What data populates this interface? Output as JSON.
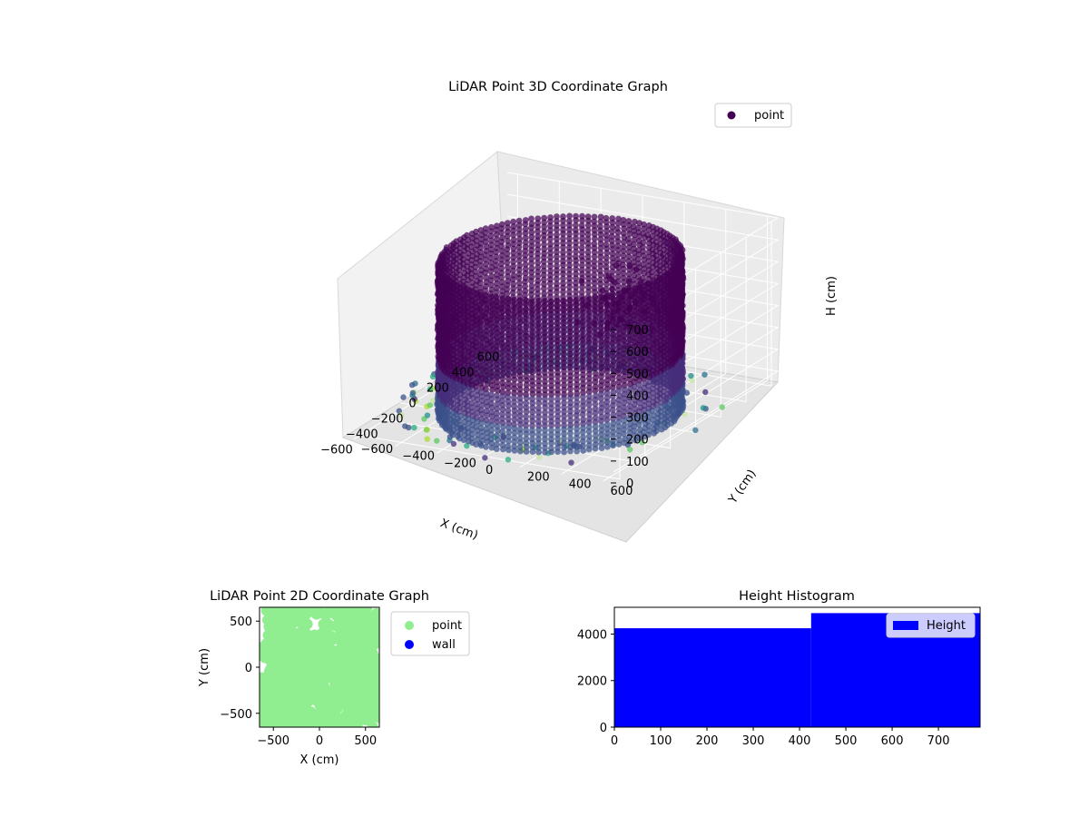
{
  "charts": {
    "c3d": {
      "title": "LiDAR Point 3D Coordinate Graph",
      "xlabel": "X (cm)",
      "ylabel": "Y (cm)",
      "zlabel": "H (cm)",
      "legend": "point",
      "x_ticks": [
        "−600",
        "−400",
        "−200",
        "0",
        "200",
        "400",
        "600"
      ],
      "y_ticks": [
        "−600",
        "−400",
        "−200",
        "0",
        "200",
        "400",
        "600"
      ],
      "z_ticks": [
        "0",
        "100",
        "200",
        "300",
        "400",
        "500",
        "600",
        "700"
      ]
    },
    "c2d": {
      "title": "LiDAR Point 2D Coordinate Graph",
      "xlabel": "X (cm)",
      "ylabel": "Y (cm)",
      "legend": [
        "point",
        "wall"
      ],
      "x_ticks": [
        "−500",
        "0",
        "500"
      ],
      "y_ticks": [
        "500",
        "0",
        "−500"
      ]
    },
    "hist": {
      "title": "Height Histogram",
      "legend": "Height",
      "x_ticks": [
        "0",
        "100",
        "200",
        "300",
        "400",
        "500",
        "600",
        "700"
      ],
      "y_ticks": [
        "0",
        "2000",
        "4000"
      ]
    }
  },
  "chart_data": [
    {
      "type": "scatter",
      "title": "LiDAR Point 3D Coordinate Graph",
      "xlabel": "X (cm)",
      "ylabel": "Y (cm)",
      "zlabel": "H (cm)",
      "xlim": [
        -650,
        650
      ],
      "ylim": [
        -650,
        650
      ],
      "zlim": [
        0,
        750
      ],
      "z_inverted": true,
      "legend": [
        "point"
      ],
      "legend_position": "upper-right",
      "colormap": "viridis",
      "grid": true,
      "main_structure": {
        "shape": "cylinder",
        "center": [
          0,
          0
        ],
        "radius": 500,
        "height_range": [
          0,
          700
        ]
      }
    },
    {
      "type": "scatter",
      "title": "LiDAR Point 2D Coordinate Graph",
      "xlabel": "X (cm)",
      "ylabel": "Y (cm)",
      "xlim": [
        -650,
        650
      ],
      "ylim": [
        -650,
        650
      ],
      "series": [
        {
          "name": "point",
          "color": "#90ee90"
        },
        {
          "name": "wall",
          "color": "#0000ff"
        }
      ],
      "legend_position": "outside-right"
    },
    {
      "type": "bar",
      "title": "Height Histogram",
      "xlim": [
        0,
        790
      ],
      "ylim": [
        0,
        5150
      ],
      "bins": [
        {
          "x0": 0,
          "x1": 425,
          "count": 4250
        },
        {
          "x0": 425,
          "x1": 790,
          "count": 4900
        }
      ],
      "series": [
        {
          "name": "Height",
          "color": "#0000ff"
        }
      ],
      "legend_position": "upper-right"
    }
  ]
}
